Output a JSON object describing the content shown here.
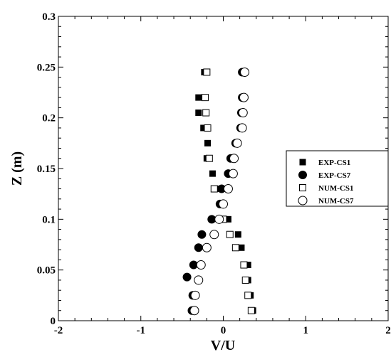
{
  "chart_data": {
    "type": "scatter",
    "xlabel": "V/U",
    "ylabel": "Z (m)",
    "xlim": [
      -2,
      2
    ],
    "ylim": [
      0,
      0.3
    ],
    "x_ticks": [
      -2,
      -1,
      0,
      1,
      2
    ],
    "y_ticks": [
      0,
      0.05,
      0.1,
      0.15,
      0.2,
      0.25,
      0.3
    ],
    "x_tick_labels": [
      "-2",
      "-1",
      "0",
      "1",
      "2"
    ],
    "y_tick_labels": [
      "0",
      "0.05",
      "0.1",
      "0.15",
      "0.2",
      "0.25",
      "0.3"
    ],
    "grid": false,
    "legend_position": "right",
    "series": [
      {
        "name": "EXP-CS1",
        "marker": "filled-square",
        "points": [
          {
            "x": -0.23,
            "y": 0.245
          },
          {
            "x": -0.3,
            "y": 0.22
          },
          {
            "x": -0.3,
            "y": 0.205
          },
          {
            "x": -0.24,
            "y": 0.19
          },
          {
            "x": -0.19,
            "y": 0.175
          },
          {
            "x": -0.2,
            "y": 0.16
          },
          {
            "x": -0.13,
            "y": 0.145
          },
          {
            "x": -0.08,
            "y": 0.13
          },
          {
            "x": -0.03,
            "y": 0.115
          },
          {
            "x": 0.06,
            "y": 0.1
          },
          {
            "x": 0.18,
            "y": 0.085
          },
          {
            "x": 0.22,
            "y": 0.072
          },
          {
            "x": 0.3,
            "y": 0.055
          },
          {
            "x": 0.3,
            "y": 0.04
          },
          {
            "x": 0.33,
            "y": 0.025
          },
          {
            "x": 0.36,
            "y": 0.01
          }
        ]
      },
      {
        "name": "EXP-CS7",
        "marker": "filled-circle",
        "points": [
          {
            "x": 0.23,
            "y": 0.245
          },
          {
            "x": 0.23,
            "y": 0.22
          },
          {
            "x": 0.22,
            "y": 0.205
          },
          {
            "x": 0.21,
            "y": 0.19
          },
          {
            "x": 0.15,
            "y": 0.175
          },
          {
            "x": 0.09,
            "y": 0.16
          },
          {
            "x": 0.06,
            "y": 0.145
          },
          {
            "x": -0.02,
            "y": 0.13
          },
          {
            "x": -0.04,
            "y": 0.115
          },
          {
            "x": -0.14,
            "y": 0.1
          },
          {
            "x": -0.26,
            "y": 0.085
          },
          {
            "x": -0.3,
            "y": 0.072
          },
          {
            "x": -0.36,
            "y": 0.055
          },
          {
            "x": -0.44,
            "y": 0.043
          },
          {
            "x": -0.37,
            "y": 0.025
          },
          {
            "x": -0.38,
            "y": 0.01
          }
        ]
      },
      {
        "name": "NUM-CS1",
        "marker": "open-square",
        "points": [
          {
            "x": -0.2,
            "y": 0.245
          },
          {
            "x": -0.22,
            "y": 0.22
          },
          {
            "x": -0.21,
            "y": 0.205
          },
          {
            "x": -0.19,
            "y": 0.19
          },
          {
            "x": -0.17,
            "y": 0.16
          },
          {
            "x": -0.11,
            "y": 0.13
          },
          {
            "x": 0.0,
            "y": 0.1
          },
          {
            "x": 0.08,
            "y": 0.085
          },
          {
            "x": 0.15,
            "y": 0.072
          },
          {
            "x": 0.25,
            "y": 0.055
          },
          {
            "x": 0.27,
            "y": 0.04
          },
          {
            "x": 0.3,
            "y": 0.025
          },
          {
            "x": 0.34,
            "y": 0.01
          }
        ]
      },
      {
        "name": "NUM-CS7",
        "marker": "open-circle",
        "points": [
          {
            "x": 0.26,
            "y": 0.245
          },
          {
            "x": 0.25,
            "y": 0.22
          },
          {
            "x": 0.24,
            "y": 0.205
          },
          {
            "x": 0.23,
            "y": 0.19
          },
          {
            "x": 0.17,
            "y": 0.175
          },
          {
            "x": 0.13,
            "y": 0.16
          },
          {
            "x": 0.12,
            "y": 0.145
          },
          {
            "x": 0.06,
            "y": 0.13
          },
          {
            "x": 0.0,
            "y": 0.115
          },
          {
            "x": -0.05,
            "y": 0.1
          },
          {
            "x": -0.11,
            "y": 0.085
          },
          {
            "x": -0.2,
            "y": 0.072
          },
          {
            "x": -0.27,
            "y": 0.055
          },
          {
            "x": -0.3,
            "y": 0.04
          },
          {
            "x": -0.34,
            "y": 0.025
          },
          {
            "x": -0.35,
            "y": 0.01
          }
        ]
      }
    ]
  }
}
